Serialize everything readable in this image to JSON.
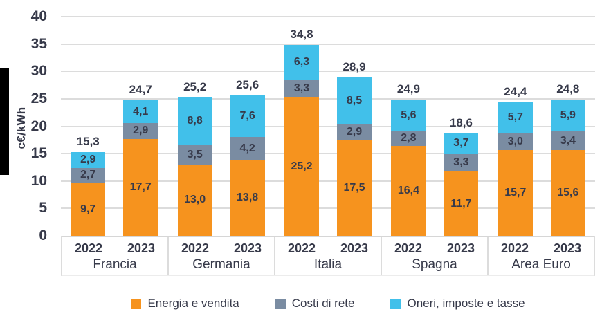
{
  "chart_data": {
    "type": "bar",
    "stacked": true,
    "title": "",
    "xlabel": "",
    "ylabel": "c€/kWh",
    "ylim": [
      0,
      40
    ],
    "ytick_step": 5,
    "ytick_labels": [
      "40",
      "35",
      "30",
      "25",
      "20",
      "15",
      "10",
      "5",
      "0"
    ],
    "ytick_values": [
      40,
      35,
      30,
      25,
      20,
      15,
      10,
      5,
      0
    ],
    "grid": "horizontal",
    "legend_position": "bottom",
    "decimal_separator": ",",
    "series": [
      {
        "name": "Energia e vendita",
        "color": "#F6931E"
      },
      {
        "name": "Costi di rete",
        "color": "#7A8CA2"
      },
      {
        "name": "Oneri, imposte e tasse",
        "color": "#41C0EA"
      }
    ],
    "groups": [
      {
        "label": "Francia",
        "bars": [
          {
            "year": "2022",
            "total": 15.3,
            "total_label": "15,3",
            "values": [
              9.7,
              2.7,
              2.9
            ],
            "value_labels": [
              "9,7",
              "2,7",
              "2,9"
            ]
          },
          {
            "year": "2023",
            "total": 24.7,
            "total_label": "24,7",
            "values": [
              17.7,
              2.9,
              4.1
            ],
            "value_labels": [
              "17,7",
              "2,9",
              "4,1"
            ]
          }
        ]
      },
      {
        "label": "Germania",
        "bars": [
          {
            "year": "2022",
            "total": 25.2,
            "total_label": "25,2",
            "values": [
              13.0,
              3.5,
              8.8
            ],
            "value_labels": [
              "13,0",
              "3,5",
              "8,8"
            ]
          },
          {
            "year": "2023",
            "total": 25.6,
            "total_label": "25,6",
            "values": [
              13.8,
              4.2,
              7.6
            ],
            "value_labels": [
              "13,8",
              "4,2",
              "7,6"
            ]
          }
        ]
      },
      {
        "label": "Italia",
        "bars": [
          {
            "year": "2022",
            "total": 34.8,
            "total_label": "34,8",
            "values": [
              25.2,
              3.3,
              6.3
            ],
            "value_labels": [
              "25,2",
              "3,3",
              "6,3"
            ]
          },
          {
            "year": "2023",
            "total": 28.9,
            "total_label": "28,9",
            "values": [
              17.5,
              2.9,
              8.5
            ],
            "value_labels": [
              "17,5",
              "2,9",
              "8,5"
            ]
          }
        ]
      },
      {
        "label": "Spagna",
        "bars": [
          {
            "year": "2022",
            "total": 24.9,
            "total_label": "24,9",
            "values": [
              16.4,
              2.8,
              5.6
            ],
            "value_labels": [
              "16,4",
              "2,8",
              "5,6"
            ]
          },
          {
            "year": "2023",
            "total": 18.6,
            "total_label": "18,6",
            "values": [
              11.7,
              3.3,
              3.7
            ],
            "value_labels": [
              "11,7",
              "3,3",
              "3,7"
            ]
          }
        ]
      },
      {
        "label": "Area Euro",
        "bars": [
          {
            "year": "2022",
            "total": 24.4,
            "total_label": "24,4",
            "values": [
              15.7,
              3.0,
              5.7
            ],
            "value_labels": [
              "15,7",
              "3,0",
              "5,7"
            ]
          },
          {
            "year": "2023",
            "total": 24.8,
            "total_label": "24,8",
            "values": [
              15.6,
              3.4,
              5.9
            ],
            "value_labels": [
              "15,6",
              "3,4",
              "5,9"
            ]
          }
        ]
      }
    ],
    "colors": {
      "text": "#373A4A",
      "grid": "#DCDCDC",
      "background": "#FFFFFF",
      "crop_artifact": "#000000"
    }
  }
}
